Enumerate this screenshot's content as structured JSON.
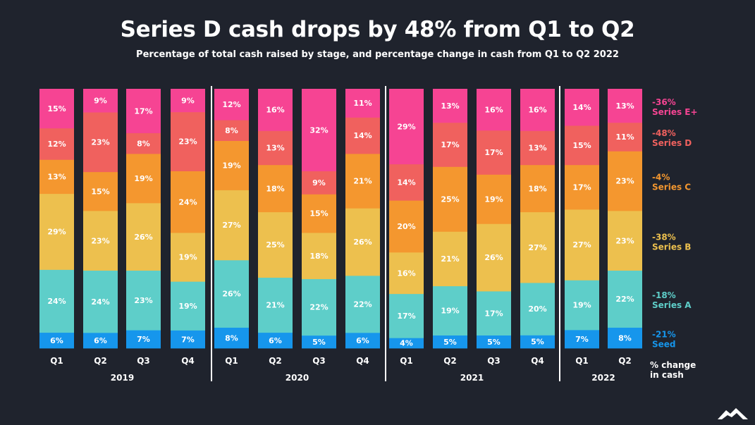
{
  "title": "Series D cash drops by 48% from Q1 to Q2",
  "subtitle": "Percentage of total cash raised by stage, and percentage change in cash from Q1 to Q2 2022",
  "colors": {
    "background": "#1f232d",
    "Seed": "#1696ec",
    "Series A": "#5ecec9",
    "Series B": "#edc04e",
    "Series C": "#f4972f",
    "Series D": "#f0615e",
    "Series E+": "#f64493"
  },
  "logo_icon": "mountain-logo-icon",
  "chart_data": {
    "type": "bar",
    "stacked": true,
    "title": "Series D cash drops by 48% from Q1 to Q2",
    "subtitle": "Percentage of total cash raised by stage, and percentage change in cash from Q1 to Q2 2022",
    "ylim": [
      0,
      100
    ],
    "grid": false,
    "legend": "right",
    "categories": [
      "Q1",
      "Q2",
      "Q3",
      "Q4",
      "Q1",
      "Q2",
      "Q3",
      "Q4",
      "Q1",
      "Q2",
      "Q3",
      "Q4",
      "Q1",
      "Q2"
    ],
    "years": [
      {
        "label": "2019",
        "quarters": 4
      },
      {
        "label": "2020",
        "quarters": 4
      },
      {
        "label": "2021",
        "quarters": 4
      },
      {
        "label": "2022",
        "quarters": 2
      }
    ],
    "series": [
      {
        "name": "Seed",
        "change": "-21%",
        "values": [
          6,
          6,
          7,
          7,
          8,
          6,
          5,
          6,
          4,
          5,
          5,
          5,
          7,
          8
        ]
      },
      {
        "name": "Series A",
        "change": "-18%",
        "values": [
          24,
          24,
          23,
          19,
          26,
          21,
          22,
          22,
          17,
          19,
          17,
          20,
          19,
          22
        ]
      },
      {
        "name": "Series B",
        "change": "-38%",
        "values": [
          29,
          23,
          26,
          19,
          27,
          25,
          18,
          26,
          16,
          21,
          26,
          27,
          27,
          23
        ]
      },
      {
        "name": "Series C",
        "change": "-4%",
        "values": [
          13,
          15,
          19,
          24,
          19,
          18,
          15,
          21,
          20,
          25,
          19,
          18,
          17,
          23
        ]
      },
      {
        "name": "Series D",
        "change": "-48%",
        "values": [
          12,
          23,
          8,
          23,
          8,
          13,
          9,
          14,
          14,
          17,
          17,
          13,
          15,
          11
        ]
      },
      {
        "name": "Series E+",
        "change": "-36%",
        "values": [
          15,
          9,
          17,
          9,
          12,
          16,
          32,
          11,
          29,
          13,
          16,
          16,
          14,
          13
        ]
      }
    ],
    "change_label": "% change in cash"
  }
}
